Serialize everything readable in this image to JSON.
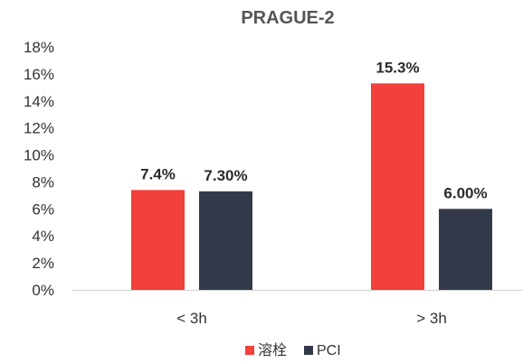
{
  "chart_data": {
    "type": "bar",
    "title": "PRAGUE-2",
    "categories": [
      "< 3h",
      "> 3h"
    ],
    "series": [
      {
        "name": "溶栓",
        "color": "#f2403a",
        "values": [
          7.4,
          15.3
        ],
        "labels": [
          "7.4%",
          "15.3%"
        ]
      },
      {
        "name": "PCI",
        "color": "#323a4a",
        "values": [
          7.3,
          6.0
        ],
        "labels": [
          "7.30%",
          "6.00%"
        ]
      }
    ],
    "ylim": [
      0,
      18
    ],
    "yticks": [
      "0%",
      "2%",
      "4%",
      "6%",
      "8%",
      "10%",
      "12%",
      "14%",
      "16%",
      "18%"
    ],
    "xlabel": "",
    "ylabel": "",
    "grid": false,
    "legend_position": "bottom"
  }
}
